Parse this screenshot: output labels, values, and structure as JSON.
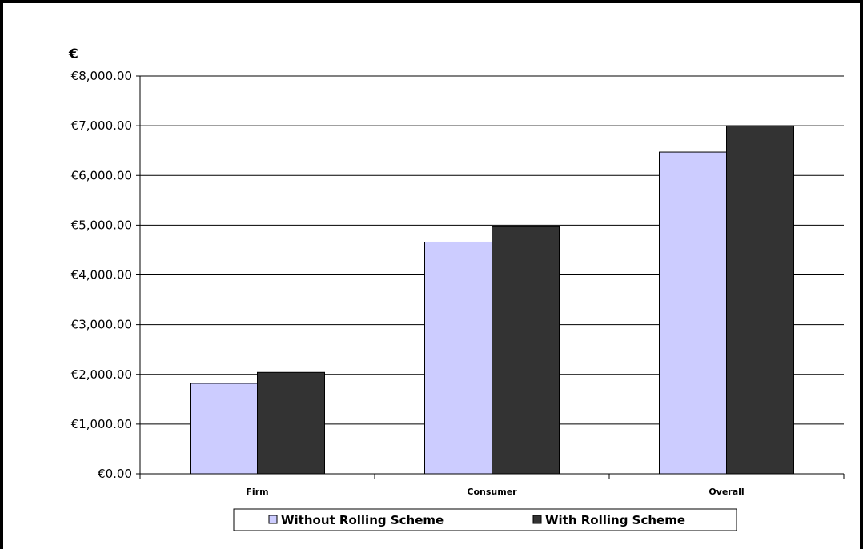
{
  "chart_data": {
    "type": "bar",
    "title": "",
    "xlabel": "",
    "ylabel": "€",
    "categories": [
      "Firm",
      "Consumer",
      "Overall"
    ],
    "series": [
      {
        "name": "Without Rolling Scheme",
        "values": [
          1820,
          4660,
          6470
        ],
        "color": "#ccccff"
      },
      {
        "name": "With Rolling Scheme",
        "values": [
          2040,
          4970,
          7000
        ],
        "color": "#333333"
      }
    ],
    "ylim": [
      0,
      8000
    ],
    "yticks": [
      0,
      1000,
      2000,
      3000,
      4000,
      5000,
      6000,
      7000,
      8000
    ],
    "ytick_labels": [
      "€0.00",
      "€1,000.00",
      "€2,000.00",
      "€3,000.00",
      "€4,000.00",
      "€5,000.00",
      "€6,000.00",
      "€7,000.00",
      "€8,000.00"
    ],
    "grid": true,
    "legend_position": "bottom"
  }
}
